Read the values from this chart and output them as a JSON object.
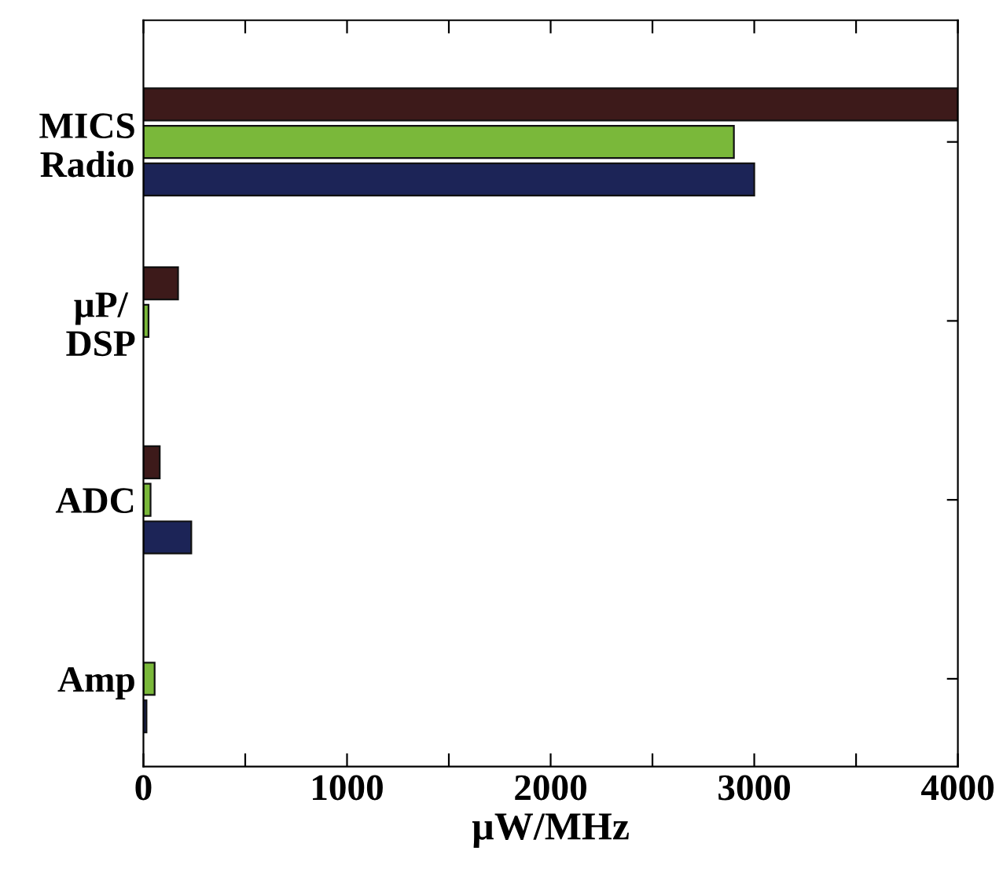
{
  "chart_data": {
    "type": "bar",
    "orientation": "horizontal",
    "xlabel": "µW/MHz",
    "categories": [
      "MICS\nRadio",
      "µP/\nDSP",
      "ADC",
      "Amp"
    ],
    "series": [
      {
        "color": "#3d1a1a",
        "values": [
          4000,
          170,
          80,
          null
        ]
      },
      {
        "color": "#7ab83a",
        "values": [
          2900,
          25,
          35,
          55
        ]
      },
      {
        "color": "#1c2457",
        "values": [
          3000,
          null,
          235,
          15
        ]
      }
    ],
    "xlim": [
      0,
      4000
    ],
    "xticks": [
      0,
      {
        "value": 500,
        "label": null
      },
      1000,
      {
        "value": 1500,
        "label": null
      },
      2000,
      {
        "value": 2500,
        "label": null
      },
      3000,
      {
        "value": 3500,
        "label": null
      },
      4000
    ],
    "grid": false
  }
}
